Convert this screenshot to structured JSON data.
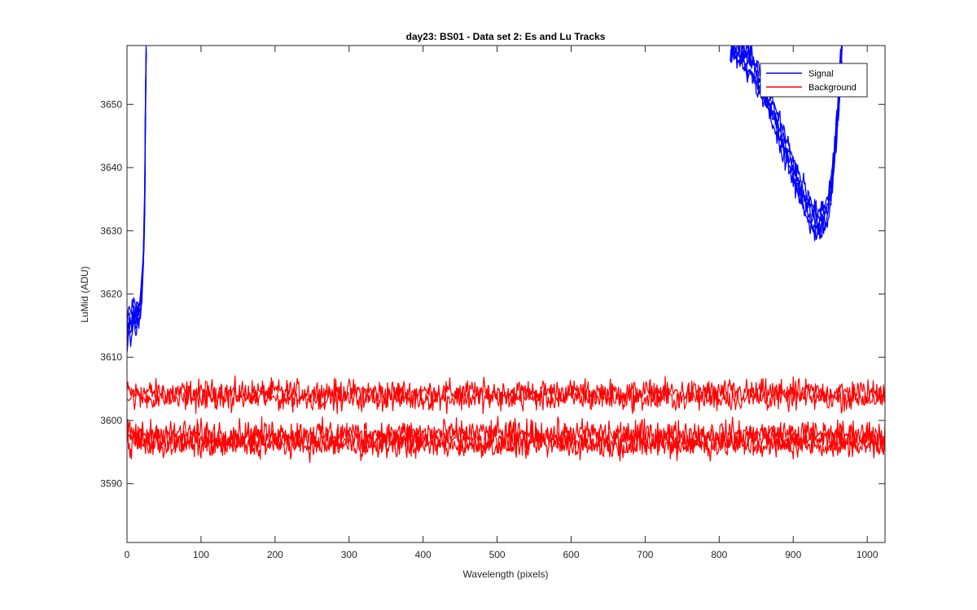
{
  "chart_data": {
    "type": "line",
    "title": "day23: BS01 - Data set 2: Es and Lu Tracks",
    "xlabel": "Wavelength (pixels)",
    "ylabel": "LuMid (ADU)",
    "xlim": [
      0,
      1024
    ],
    "ylim": [
      3580.7,
      3659.3
    ],
    "xticks": [
      0,
      100,
      200,
      300,
      400,
      500,
      600,
      700,
      800,
      900,
      1000
    ],
    "yticks": [
      3590,
      3600,
      3610,
      3620,
      3630,
      3640,
      3650
    ],
    "grid": false,
    "legend": {
      "placement": "top-right",
      "entries": [
        {
          "label": "Signal",
          "color": "#0000ff"
        },
        {
          "label": "Background",
          "color": "#ff0000"
        }
      ]
    },
    "series": [
      {
        "name": "Signal",
        "color": "#0000ff",
        "segments": [
          {
            "x": [
              0,
              3,
              6,
              9,
              12,
              15,
              18,
              20,
              22,
              24,
              25,
              26
            ],
            "y": [
              3614,
              3616,
              3615,
              3617,
              3616,
              3617,
              3618,
              3620,
              3625,
              3635,
              3650,
              3659.3
            ]
          },
          {
            "x": [
              815,
              830,
              845,
              860,
              875,
              890,
              905,
              915,
              925,
              935,
              945,
              952,
              958,
              962,
              966
            ],
            "y": [
              3659.3,
              3658,
              3656,
              3652,
              3648,
              3643,
              3638,
              3635,
              3632,
              3631,
              3633,
              3637,
              3645,
              3652,
              3659.3
            ]
          }
        ]
      },
      {
        "name": "Background",
        "color": "#ff0000",
        "traces": [
          {
            "mean": 3604.5,
            "amplitude": 1.5
          },
          {
            "mean": 3603.5,
            "amplitude": 1.5
          },
          {
            "mean": 3598.0,
            "amplitude": 1.6
          },
          {
            "mean": 3597.0,
            "amplitude": 1.6
          },
          {
            "mean": 3596.0,
            "amplitude": 1.5
          }
        ]
      }
    ]
  }
}
